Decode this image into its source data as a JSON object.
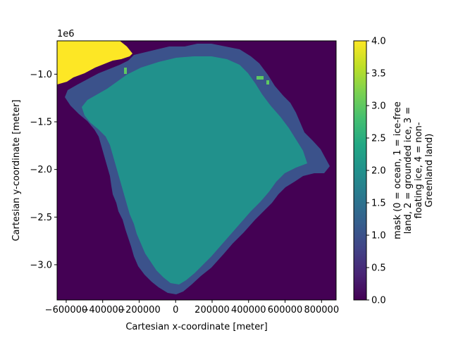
{
  "chart_data": {
    "type": "heatmap",
    "title": "",
    "xlabel": "Cartesian x-coordinate [meter]",
    "ylabel": "Cartesian y-coordinate [meter]",
    "y_offset_label": "1e6",
    "xlim": [
      -650000,
      880000
    ],
    "ylim": [
      -3370000,
      -650000
    ],
    "x_ticks": [
      -600000,
      -400000,
      -200000,
      0,
      200000,
      400000,
      600000,
      800000
    ],
    "x_tick_labels": [
      "−600000",
      "−400000",
      "−200000",
      "0",
      "200000",
      "400000",
      "600000",
      "800000"
    ],
    "y_ticks": [
      -1.0,
      -1.5,
      -2.0,
      -2.5,
      -3.0
    ],
    "y_tick_labels": [
      "−1.0",
      "−1.5",
      "−2.0",
      "−2.5",
      "−3.0"
    ],
    "colormap": "viridis",
    "colorbar": {
      "label_lines": [
        "mask (0 = ocean, 1 = ice-free",
        "land, 2 = grounded ice, 3 =",
        "floating ice, 4 = non-",
        "Greenland land)"
      ],
      "range": [
        0.0,
        4.0
      ],
      "ticks": [
        0.0,
        0.5,
        1.0,
        1.5,
        2.0,
        2.5,
        3.0,
        3.5,
        4.0
      ],
      "tick_labels": [
        "0.0",
        "0.5",
        "1.0",
        "1.5",
        "2.0",
        "2.5",
        "3.0",
        "3.5",
        "4.0"
      ]
    },
    "categories": [
      {
        "value": 0,
        "meaning": "ocean",
        "color": "#440154"
      },
      {
        "value": 1,
        "meaning": "ice-free land",
        "color": "#3b528b"
      },
      {
        "value": 2,
        "meaning": "grounded ice",
        "color": "#21918c"
      },
      {
        "value": 3,
        "meaning": "floating ice",
        "color": "#5ec962"
      },
      {
        "value": 4,
        "meaning": "non-Greenland land",
        "color": "#fde725"
      }
    ]
  }
}
